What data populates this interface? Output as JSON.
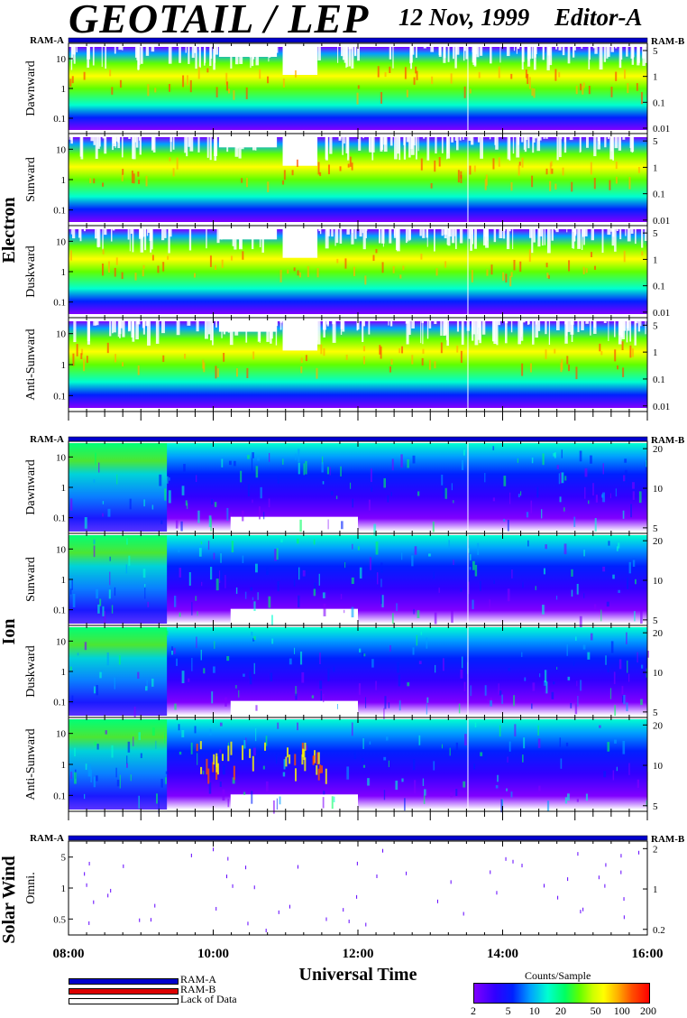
{
  "header": {
    "title": "GEOTAIL / LEP",
    "date": "12 Nov, 1999",
    "editor": "Editor-A"
  },
  "chart_data": {
    "type": "heatmap",
    "x_axis": {
      "label": "Universal Time",
      "range": [
        "08:00",
        "16:00"
      ],
      "tick_labels": [
        "08:00",
        "10:00",
        "12:00",
        "14:00",
        "16:00"
      ]
    },
    "colorbar": {
      "title": "Counts/Sample",
      "ticks": [
        "2",
        "5",
        "10",
        "20",
        "50",
        "100",
        "200"
      ],
      "range": [
        2,
        200
      ],
      "scale": "log",
      "colors": [
        "#8000ff",
        "#0020ff",
        "#00a0ff",
        "#00ffd0",
        "#00ff60",
        "#d0ff00",
        "#ffff00",
        "#ff5000",
        "#ff0000"
      ]
    },
    "groups": [
      {
        "name": "Electron",
        "ram_left": "RAM-A",
        "ram_right": "RAM-B",
        "left_ticks": [
          "10",
          "1",
          "0.1"
        ],
        "right_ticks": [
          "5",
          "1",
          "0.1",
          "0.01"
        ],
        "panels": [
          "Dawnward",
          "Sunward",
          "Duskward",
          "Anti-Sunward"
        ]
      },
      {
        "name": "Ion",
        "ram_left": "RAM-A",
        "ram_right": "RAM-B",
        "left_ticks": [
          "10",
          "1",
          "0.1"
        ],
        "right_ticks": [
          "20",
          "10",
          "5"
        ],
        "panels": [
          "Dawnward",
          "Sunward",
          "Duskward",
          "Anti-Sunward"
        ]
      },
      {
        "name": "Solar Wind",
        "ram_left": "RAM-A",
        "ram_right": "RAM-B",
        "left_ticks": [
          "5",
          "1",
          "0.5"
        ],
        "right_ticks": [
          "2",
          "1",
          "0.2"
        ],
        "panels": [
          "Omni."
        ]
      }
    ],
    "legend": [
      {
        "label": "RAM-A",
        "color": "#0000cc"
      },
      {
        "label": "RAM-B",
        "color": "#dd0000"
      },
      {
        "label": "Lack of Data",
        "color": "#ffffff"
      }
    ]
  }
}
